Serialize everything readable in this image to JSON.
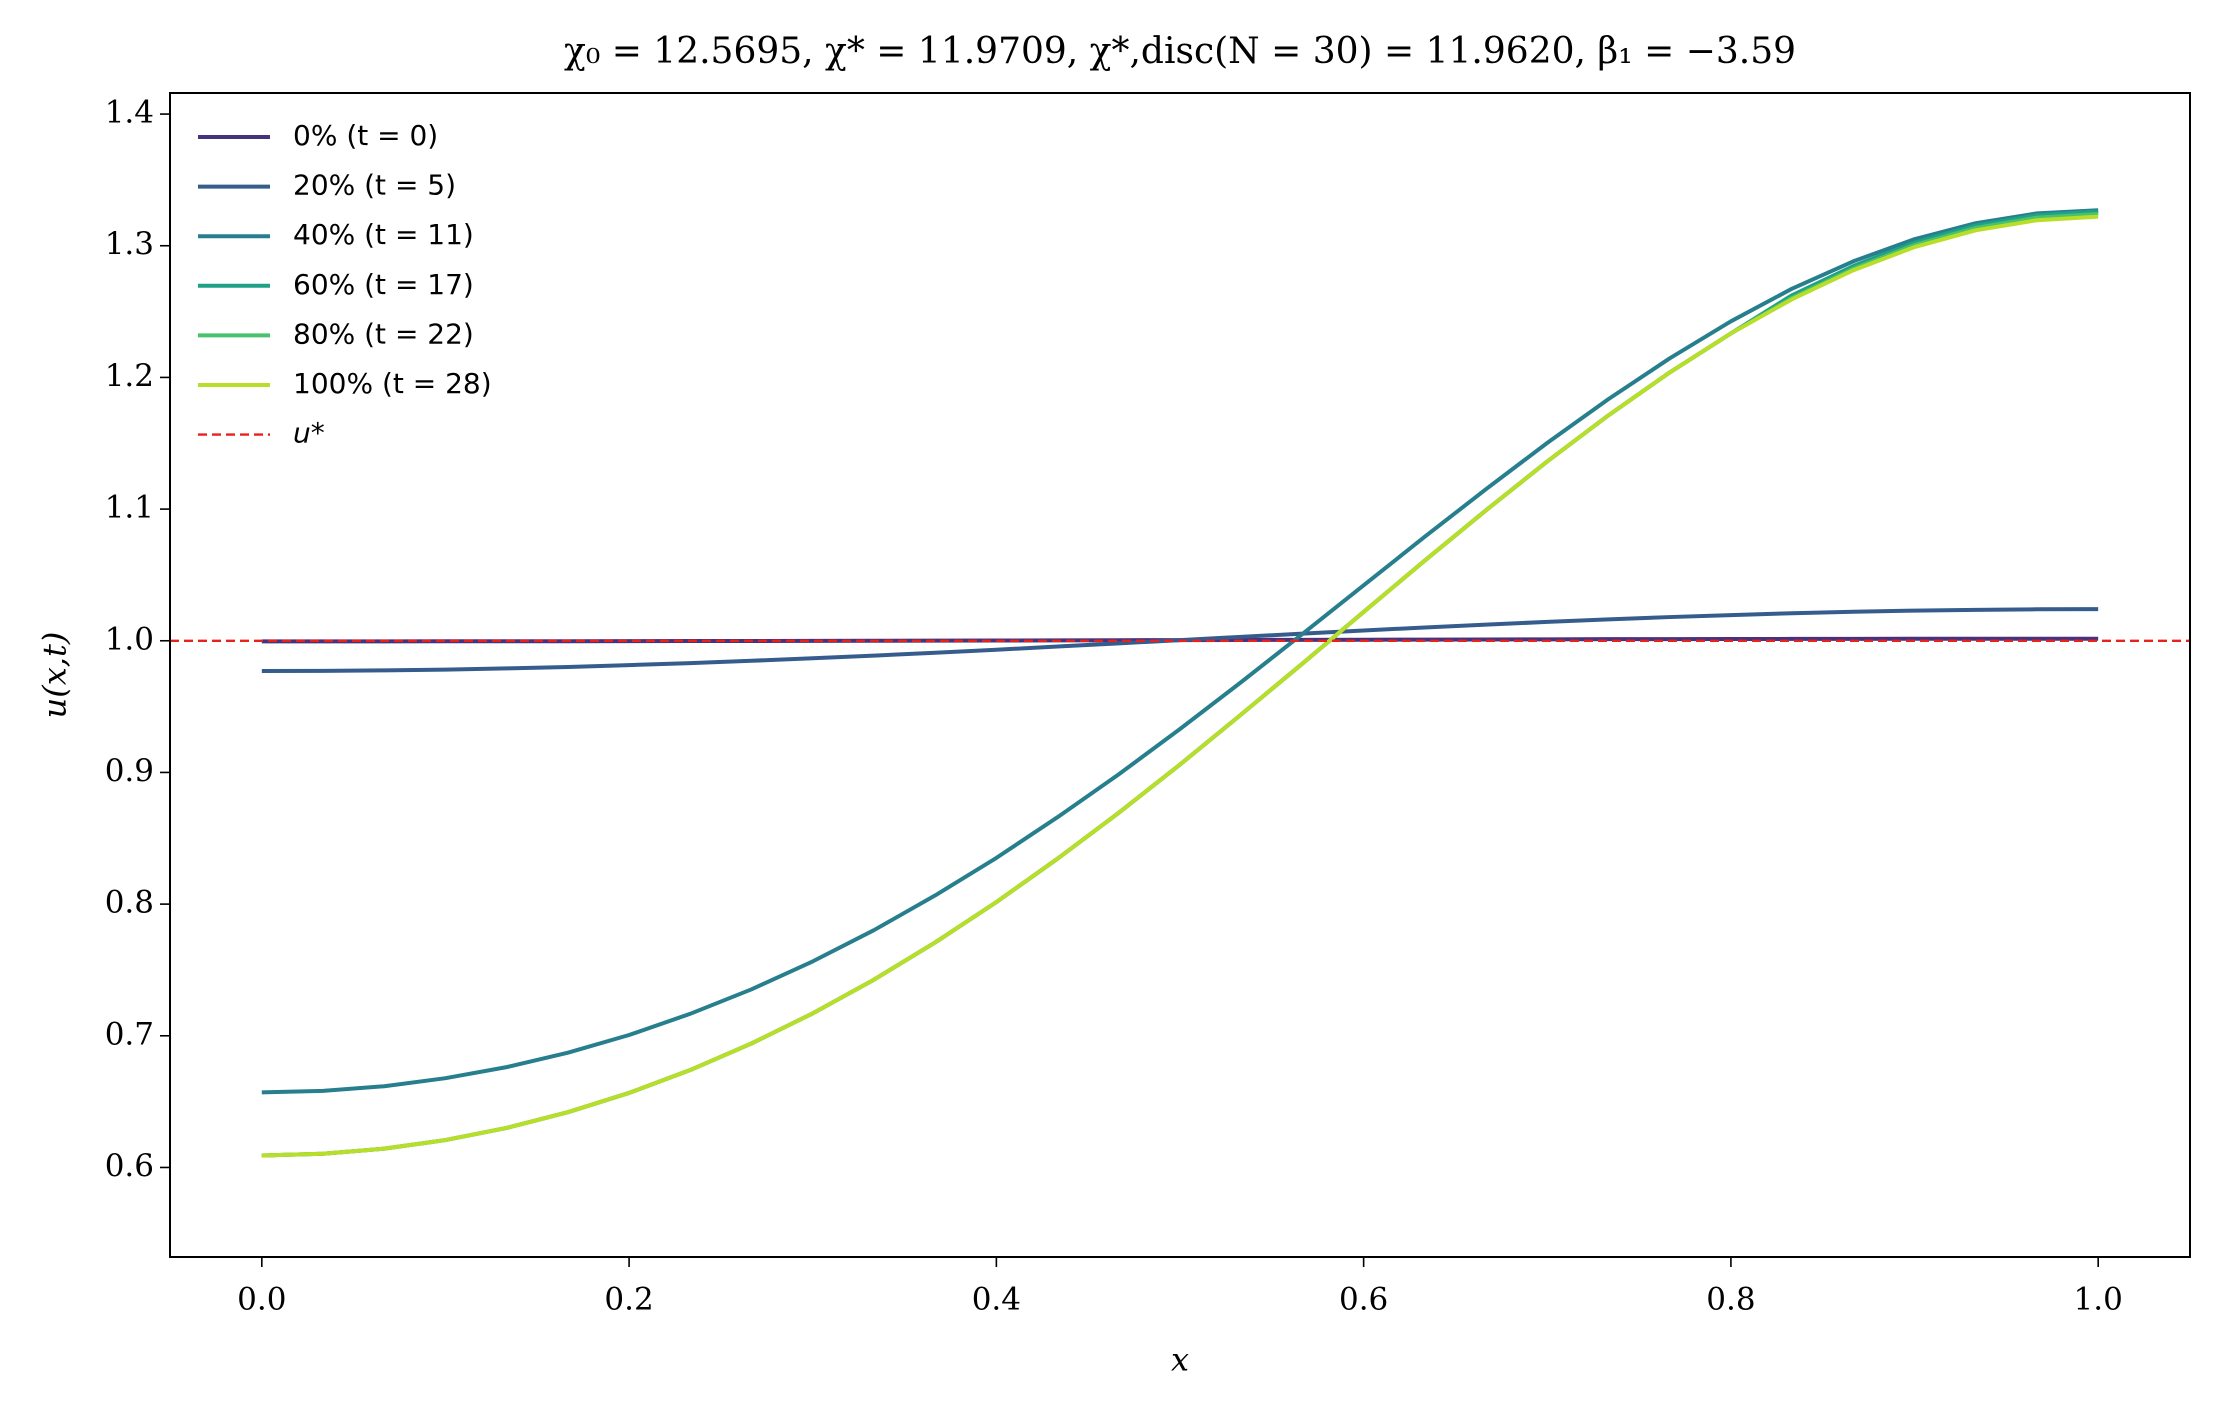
{
  "chart_data": {
    "type": "line",
    "title": "χ₀ = 12.5695,  χ* = 11.9709,  χ*,disc(N = 30) = 11.9620,  β₁ = −3.59",
    "xlabel": "x",
    "ylabel": "u(x,t)",
    "x": [
      0,
      0.0333,
      0.0667,
      0.1,
      0.1333,
      0.1667,
      0.2,
      0.2333,
      0.2667,
      0.3,
      0.3333,
      0.3667,
      0.4,
      0.4333,
      0.4667,
      0.5,
      0.5333,
      0.5667,
      0.6,
      0.6333,
      0.6667,
      0.7,
      0.7333,
      0.7667,
      0.8,
      0.8333,
      0.8667,
      0.9,
      0.9333,
      0.9667,
      1
    ],
    "series": [
      {
        "name": "0% (t = 0)",
        "color": "#46337e",
        "values": [
          0.9995,
          0.9995,
          0.9995,
          0.9996,
          0.9996,
          0.9996,
          0.9997,
          0.9998,
          0.9998,
          0.9999,
          1.0,
          1.0001,
          1.0002,
          1.0003,
          1.0004,
          1.0005,
          1.0006,
          1.0007,
          1.0008,
          1.0009,
          1.001,
          1.0011,
          1.0012,
          1.0012,
          1.0013,
          1.0014,
          1.0014,
          1.0015,
          1.0015,
          1.0015,
          1.0015
        ]
      },
      {
        "name": "20% (t = 5)",
        "color": "#365c8d",
        "values": [
          0.977,
          0.9771,
          0.9775,
          0.9781,
          0.979,
          0.9801,
          0.9815,
          0.983,
          0.9848,
          0.9867,
          0.9887,
          0.9909,
          0.9932,
          0.9956,
          0.998,
          1.0005,
          1.003,
          1.0054,
          1.0078,
          1.0101,
          1.0123,
          1.0143,
          1.0162,
          1.018,
          1.0195,
          1.0209,
          1.022,
          1.0229,
          1.0235,
          1.0239,
          1.024
        ]
      },
      {
        "name": "40% (t = 11)",
        "color": "#277f8e",
        "values": [
          0.657,
          0.6582,
          0.6617,
          0.6678,
          0.6762,
          0.6872,
          0.7006,
          0.7167,
          0.7353,
          0.7565,
          0.7802,
          0.8066,
          0.8351,
          0.866,
          0.8986,
          0.933,
          0.9686,
          1.0052,
          1.0421,
          1.079,
          1.1152,
          1.1503,
          1.1835,
          1.2145,
          1.2426,
          1.2674,
          1.2882,
          1.305,
          1.3171,
          1.3246,
          1.327
        ]
      },
      {
        "name": "60% (t = 17)",
        "color": "#1fa187",
        "values": [
          0.6091,
          0.6104,
          0.6143,
          0.6208,
          0.63,
          0.642,
          0.6566,
          0.674,
          0.6942,
          0.717,
          0.7426,
          0.7709,
          0.8015,
          0.8345,
          0.8694,
          0.906,
          0.944,
          0.9827,
          1.0219,
          1.0609,
          1.0992,
          1.1362,
          1.1712,
          1.2038,
          1.2334,
          1.2624,
          1.2846,
          1.3024,
          1.3153,
          1.3232,
          1.326
        ]
      },
      {
        "name": "80% (t = 22)",
        "color": "#4ac16d",
        "values": [
          0.6091,
          0.6104,
          0.6143,
          0.6208,
          0.63,
          0.642,
          0.6566,
          0.674,
          0.6942,
          0.717,
          0.7426,
          0.7709,
          0.8015,
          0.8345,
          0.8694,
          0.906,
          0.944,
          0.9827,
          1.0219,
          1.0609,
          1.0992,
          1.1362,
          1.1712,
          1.2038,
          1.2334,
          1.2604,
          1.2826,
          1.3006,
          1.3135,
          1.3214,
          1.3241
        ]
      },
      {
        "name": "100% (t = 28)",
        "color": "#b8de29",
        "values": [
          0.6091,
          0.6104,
          0.6143,
          0.6208,
          0.63,
          0.642,
          0.6566,
          0.674,
          0.6942,
          0.717,
          0.7426,
          0.7709,
          0.8015,
          0.8345,
          0.8694,
          0.906,
          0.944,
          0.9827,
          1.0219,
          1.0609,
          1.0992,
          1.1362,
          1.1712,
          1.2038,
          1.2334,
          1.2594,
          1.2814,
          1.299,
          1.3117,
          1.3194,
          1.3221
        ]
      }
    ],
    "hlines": [
      {
        "name": "u*",
        "value": 1.0,
        "color": "#e8211c",
        "style": "dashed"
      }
    ],
    "xlim": [
      -0.05,
      1.05
    ],
    "xticks": [
      {
        "value": 0,
        "label": "0.0"
      },
      0.2,
      0.4,
      0.6,
      0.8,
      {
        "value": 1,
        "label": "1.0"
      }
    ],
    "ylim": [
      0.532,
      1.416
    ],
    "yticks": [
      0.6,
      0.7,
      0.8,
      0.9,
      {
        "value": 1,
        "label": "1.0"
      },
      1.1,
      1.2,
      1.3,
      1.4
    ],
    "grid": false,
    "legend": "upper left"
  }
}
